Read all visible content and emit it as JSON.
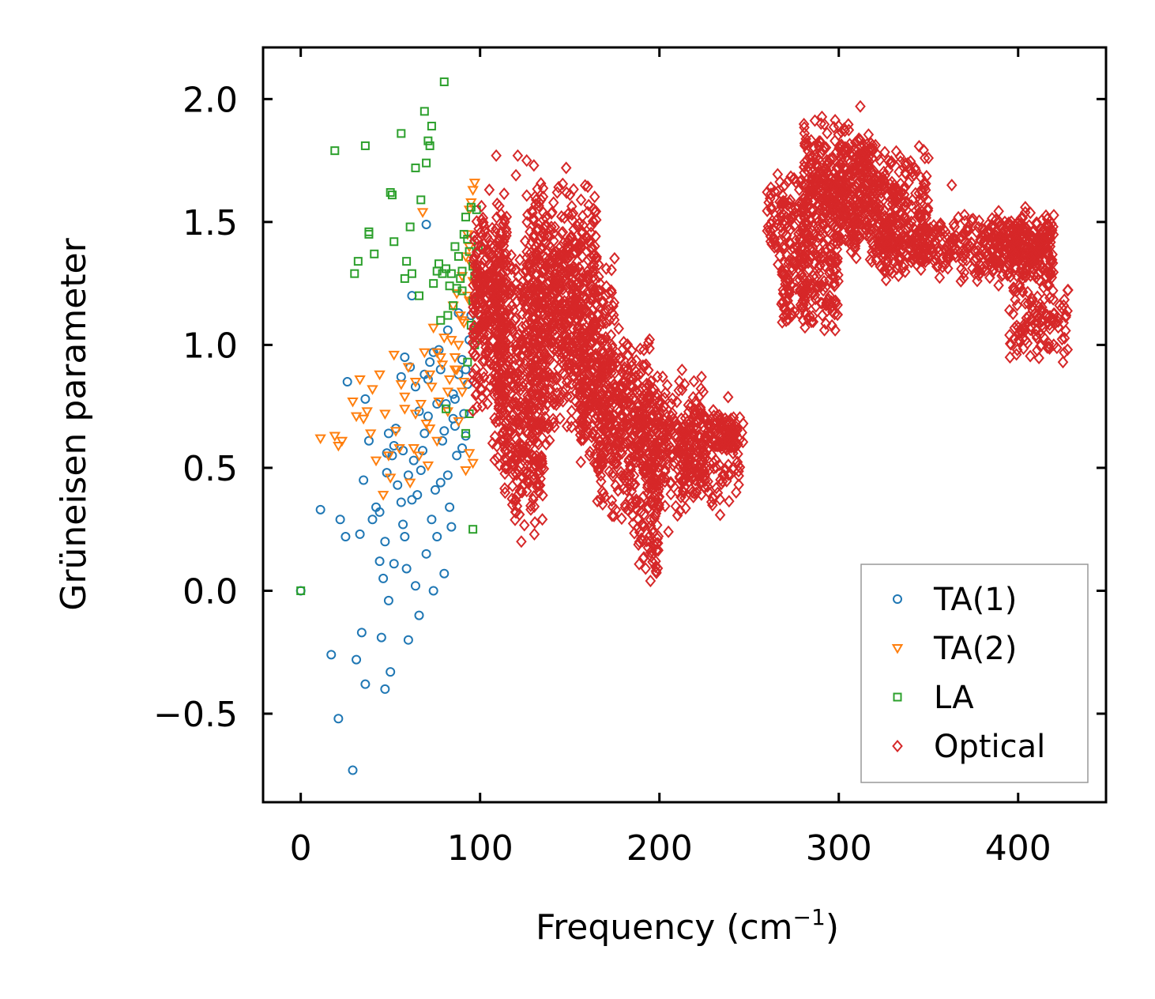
{
  "chart_data": {
    "type": "scatter",
    "title": "",
    "xlabel": "Frequency (cm",
    "xlabel_superscript": "−1",
    "xlabel_suffix": ")",
    "ylabel": "Grüneisen parameter",
    "xlim": [
      -21,
      449
    ],
    "ylim": [
      -0.86,
      2.21
    ],
    "x_ticks": [
      0,
      100,
      200,
      300,
      400
    ],
    "x_tick_labels": [
      "0",
      "100",
      "200",
      "300",
      "400"
    ],
    "y_ticks": [
      -0.5,
      0.0,
      0.5,
      1.0,
      1.5,
      2.0
    ],
    "y_tick_labels": [
      "−0.5",
      "0.0",
      "0.5",
      "1.0",
      "1.5",
      "2.0"
    ],
    "legend_position": "bottom-right",
    "series": [
      {
        "name": "TA(1)",
        "marker": "circle",
        "color": "#1f77b4",
        "x": [
          0,
          11,
          17,
          21,
          22,
          25,
          26,
          29,
          31,
          33,
          34,
          35,
          36,
          36,
          38,
          40,
          42,
          44,
          45,
          46,
          47,
          47,
          48,
          49,
          49,
          50,
          51,
          52,
          54,
          56,
          57,
          58,
          59,
          60,
          62,
          63,
          64,
          66,
          67,
          68,
          69,
          70,
          71,
          73,
          74,
          75,
          76,
          78,
          79,
          80,
          81,
          82,
          83,
          84,
          85,
          86,
          87,
          88,
          90,
          91,
          92,
          93,
          94,
          95,
          96,
          58,
          62,
          70,
          76,
          80,
          85,
          90,
          64,
          72,
          78,
          86,
          53,
          57,
          61,
          66,
          71,
          77,
          44,
          48,
          52,
          56,
          60,
          65,
          69,
          74,
          82,
          88,
          92
        ],
        "y": [
          0.0,
          0.33,
          -0.26,
          -0.52,
          0.29,
          0.22,
          0.85,
          -0.73,
          -0.28,
          0.23,
          -0.17,
          0.45,
          0.78,
          -0.38,
          0.61,
          0.29,
          0.34,
          0.12,
          -0.19,
          0.05,
          0.2,
          -0.4,
          0.48,
          0.64,
          -0.04,
          -0.33,
          0.55,
          0.11,
          0.43,
          0.36,
          0.27,
          0.22,
          0.09,
          -0.2,
          0.37,
          0.53,
          0.02,
          -0.1,
          0.49,
          0.57,
          0.64,
          0.15,
          0.71,
          0.29,
          0.0,
          0.41,
          0.22,
          0.9,
          0.61,
          0.07,
          0.76,
          0.47,
          0.34,
          0.26,
          0.8,
          0.67,
          0.55,
          0.88,
          0.94,
          0.72,
          0.63,
          0.84,
          1.02,
          1.12,
          1.18,
          0.95,
          1.2,
          1.49,
          0.76,
          0.65,
          0.7,
          0.58,
          0.83,
          0.93,
          0.44,
          0.78,
          0.66,
          0.57,
          0.91,
          0.73,
          0.86,
          0.98,
          0.32,
          0.56,
          0.59,
          0.87,
          0.47,
          0.39,
          0.88,
          0.97,
          1.06,
          1.13,
          0.9
        ]
      },
      {
        "name": "TA(2)",
        "marker": "triangle-down",
        "color": "#ff7f0e",
        "x": [
          11,
          19,
          21,
          23,
          29,
          31,
          33,
          35,
          37,
          39,
          40,
          42,
          44,
          46,
          47,
          49,
          50,
          52,
          53,
          55,
          56,
          58,
          60,
          61,
          63,
          64,
          66,
          67,
          69,
          70,
          71,
          73,
          74,
          76,
          77,
          79,
          80,
          82,
          83,
          85,
          86,
          87,
          88,
          90,
          91,
          92,
          93,
          94,
          95,
          96,
          97,
          92,
          94,
          96,
          91,
          93,
          95,
          87,
          89,
          94,
          96,
          88,
          90,
          68,
          72,
          76,
          82,
          86,
          58,
          64,
          72,
          78,
          84,
          90,
          94
        ],
        "y": [
          0.62,
          0.63,
          0.59,
          0.61,
          0.77,
          0.71,
          0.86,
          0.7,
          0.73,
          0.64,
          0.82,
          0.53,
          0.88,
          0.39,
          0.72,
          0.55,
          0.46,
          0.96,
          0.65,
          0.58,
          0.84,
          0.74,
          0.91,
          0.44,
          0.58,
          0.85,
          0.55,
          0.76,
          0.97,
          0.68,
          0.51,
          0.83,
          1.07,
          0.61,
          0.77,
          0.92,
          1.03,
          0.73,
          0.86,
          1.16,
          0.95,
          1.21,
          1.0,
          1.28,
          0.85,
          1.36,
          1.45,
          1.55,
          1.58,
          1.63,
          1.66,
          0.49,
          0.56,
          0.52,
          1.09,
          1.2,
          1.33,
          0.9,
          1.12,
          1.4,
          1.26,
          0.69,
          0.81,
          1.54,
          0.88,
          0.97,
          0.81,
          0.9,
          0.79,
          0.72,
          0.66,
          0.95,
          1.02,
          1.1,
          1.18
        ]
      },
      {
        "name": "LA",
        "marker": "square",
        "color": "#2ca02c",
        "x": [
          0,
          19,
          30,
          32,
          36,
          38,
          38,
          41,
          50,
          51,
          52,
          56,
          58,
          59,
          61,
          62,
          64,
          66,
          67,
          69,
          70,
          71,
          72,
          73,
          74,
          76,
          77,
          78,
          79,
          80,
          81,
          82,
          83,
          84,
          85,
          86,
          87,
          88,
          89,
          90,
          91,
          92,
          93,
          94,
          95,
          96,
          97,
          98,
          99,
          99,
          81,
          96,
          92,
          94,
          97,
          98,
          95,
          96,
          98,
          90,
          93,
          97
        ],
        "y": [
          0.0,
          1.79,
          1.29,
          1.34,
          1.81,
          1.46,
          1.45,
          1.37,
          1.62,
          1.61,
          1.42,
          1.86,
          1.27,
          1.34,
          1.48,
          1.29,
          1.72,
          1.2,
          1.59,
          1.95,
          1.74,
          1.83,
          1.81,
          1.89,
          1.25,
          1.3,
          1.33,
          1.1,
          1.29,
          2.07,
          1.31,
          1.12,
          1.24,
          1.29,
          1.16,
          1.4,
          1.23,
          1.36,
          1.27,
          1.3,
          1.45,
          1.52,
          1.43,
          1.38,
          1.56,
          1.32,
          1.28,
          1.55,
          1.25,
          1.4,
          0.74,
          0.25,
          0.64,
          0.72,
          1.0,
          1.1,
          1.08,
          1.18,
          1.3,
          1.22,
          0.93,
          1.06
        ]
      },
      {
        "name": "Optical",
        "marker": "diamond",
        "color": "#d62728",
        "clusters": [
          {
            "x": [
              96,
              115
            ],
            "y": [
              0.7,
              1.65
            ],
            "n": 340
          },
          {
            "x": [
              108,
              140
            ],
            "y": [
              0.45,
              1.45
            ],
            "n": 380
          },
          {
            "x": [
              112,
              135
            ],
            "y": [
              0.2,
              0.9
            ],
            "n": 160
          },
          {
            "x": [
              125,
              165
            ],
            "y": [
              0.85,
              1.7
            ],
            "n": 380
          },
          {
            "x": [
              140,
              175
            ],
            "y": [
              0.6,
              1.45
            ],
            "n": 260
          },
          {
            "x": [
              155,
              195
            ],
            "y": [
              0.45,
              1.1
            ],
            "n": 260
          },
          {
            "x": [
              165,
              200
            ],
            "y": [
              0.25,
              0.9
            ],
            "n": 220
          },
          {
            "x": [
              185,
              200
            ],
            "y": [
              0.05,
              0.45
            ],
            "n": 60
          },
          {
            "x": [
              190,
              225
            ],
            "y": [
              0.3,
              0.92
            ],
            "n": 220
          },
          {
            "x": [
              210,
              245
            ],
            "y": [
              0.3,
              0.8
            ],
            "n": 170
          },
          {
            "x": [
              225,
              247
            ],
            "y": [
              0.55,
              0.72
            ],
            "n": 60
          },
          {
            "x": [
              260,
              300
            ],
            "y": [
              1.25,
              1.72
            ],
            "n": 220
          },
          {
            "x": [
              268,
              300
            ],
            "y": [
              1.05,
              1.4
            ],
            "n": 150
          },
          {
            "x": [
              280,
              320
            ],
            "y": [
              1.4,
              1.95
            ],
            "n": 260
          },
          {
            "x": [
              300,
              350
            ],
            "y": [
              1.3,
              1.85
            ],
            "n": 330
          },
          {
            "x": [
              320,
              345
            ],
            "y": [
              1.25,
              1.55
            ],
            "n": 120
          },
          {
            "x": [
              345,
              420
            ],
            "y": [
              1.25,
              1.55
            ],
            "n": 320
          },
          {
            "x": [
              385,
              420
            ],
            "y": [
              1.2,
              1.58
            ],
            "n": 150
          },
          {
            "x": [
              395,
              428
            ],
            "y": [
              0.92,
              1.25
            ],
            "n": 110
          }
        ],
        "x": [
          109,
          121,
          123,
          126,
          136,
          148,
          160,
          172,
          180,
          187,
          195,
          205,
          220,
          234,
          243,
          285,
          290,
          292,
          298,
          303,
          312,
          318,
          325,
          348,
          363,
          372,
          386,
          404,
          418,
          425,
          120,
          130,
          111,
          107,
          96,
          118,
          122,
          143,
          131,
          145
        ],
        "y": [
          1.77,
          1.77,
          0.2,
          1.75,
          0.88,
          1.72,
          1.3,
          0.7,
          0.46,
          0.36,
          0.04,
          0.24,
          0.45,
          0.7,
          0.6,
          1.67,
          1.55,
          1.06,
          1.65,
          1.88,
          1.97,
          1.8,
          1.65,
          1.76,
          1.65,
          1.48,
          1.38,
          1.56,
          1.35,
          0.93,
          1.69,
          1.73,
          0.82,
          0.6,
          1.01,
          0.35,
          0.31,
          1.62,
          1.4,
          1.26
        ]
      }
    ]
  }
}
